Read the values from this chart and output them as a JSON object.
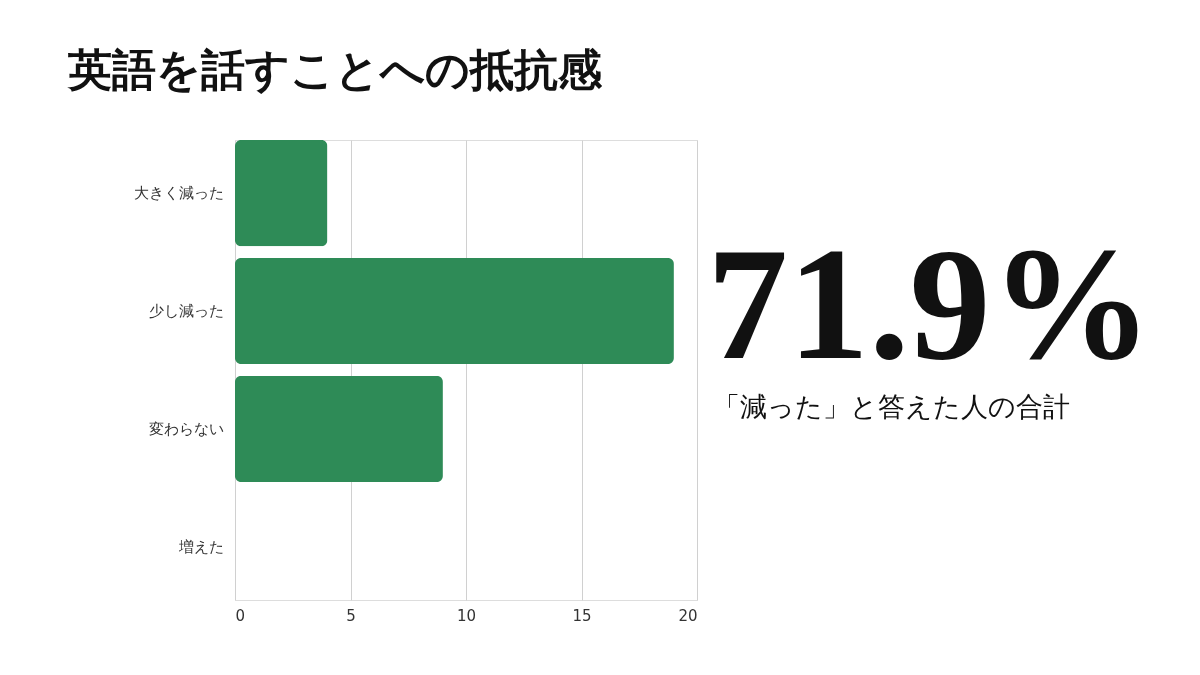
{
  "chart_data": {
    "type": "bar",
    "orientation": "horizontal",
    "title": "英語を話すことへの抵抗感",
    "categories": [
      "大きく減った",
      "少し減った",
      "変わらない",
      "増えた"
    ],
    "values": [
      4,
      19,
      9,
      0
    ],
    "color": "#2e8b57",
    "xlim": [
      0,
      20
    ],
    "xticks": [
      0,
      5,
      10,
      15,
      20
    ],
    "grid": "x",
    "annotations": [
      "71.9%",
      "「減った」と答えた人の合計"
    ]
  }
}
